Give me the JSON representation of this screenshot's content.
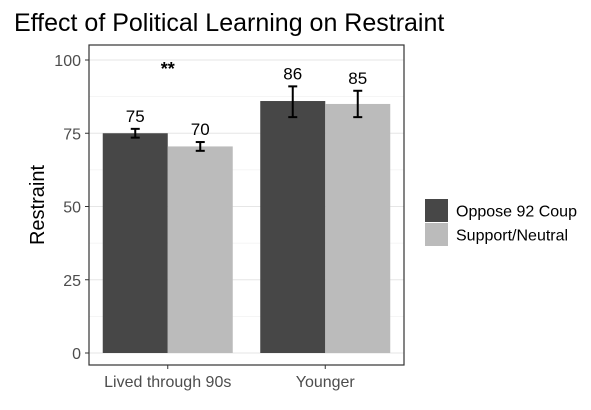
{
  "chart_data": {
    "type": "bar",
    "title": "Effect of Political Learning on Restraint",
    "xlabel": "",
    "ylabel": "Restraint",
    "ylim": [
      0,
      103
    ],
    "yticks": [
      0,
      25,
      50,
      75,
      100
    ],
    "grid": true,
    "legend_position": "right",
    "categories": [
      "Lived through 90s",
      "Younger"
    ],
    "series": [
      {
        "name": "Oppose 92 Coup",
        "color": "#474747",
        "values": [
          75,
          86
        ],
        "labels": [
          "75",
          "86"
        ],
        "error_low": [
          73.5,
          80.5
        ],
        "error_high": [
          76.5,
          91
        ]
      },
      {
        "name": "Support/Neutral",
        "color": "#bbbbbb",
        "values": [
          70.5,
          85
        ],
        "labels": [
          "70",
          "85"
        ],
        "error_low": [
          69,
          80.5
        ],
        "error_high": [
          72,
          89.5
        ]
      }
    ],
    "annotations": [
      {
        "text": "**",
        "category": "Lived through 90s",
        "y": 97
      }
    ]
  }
}
